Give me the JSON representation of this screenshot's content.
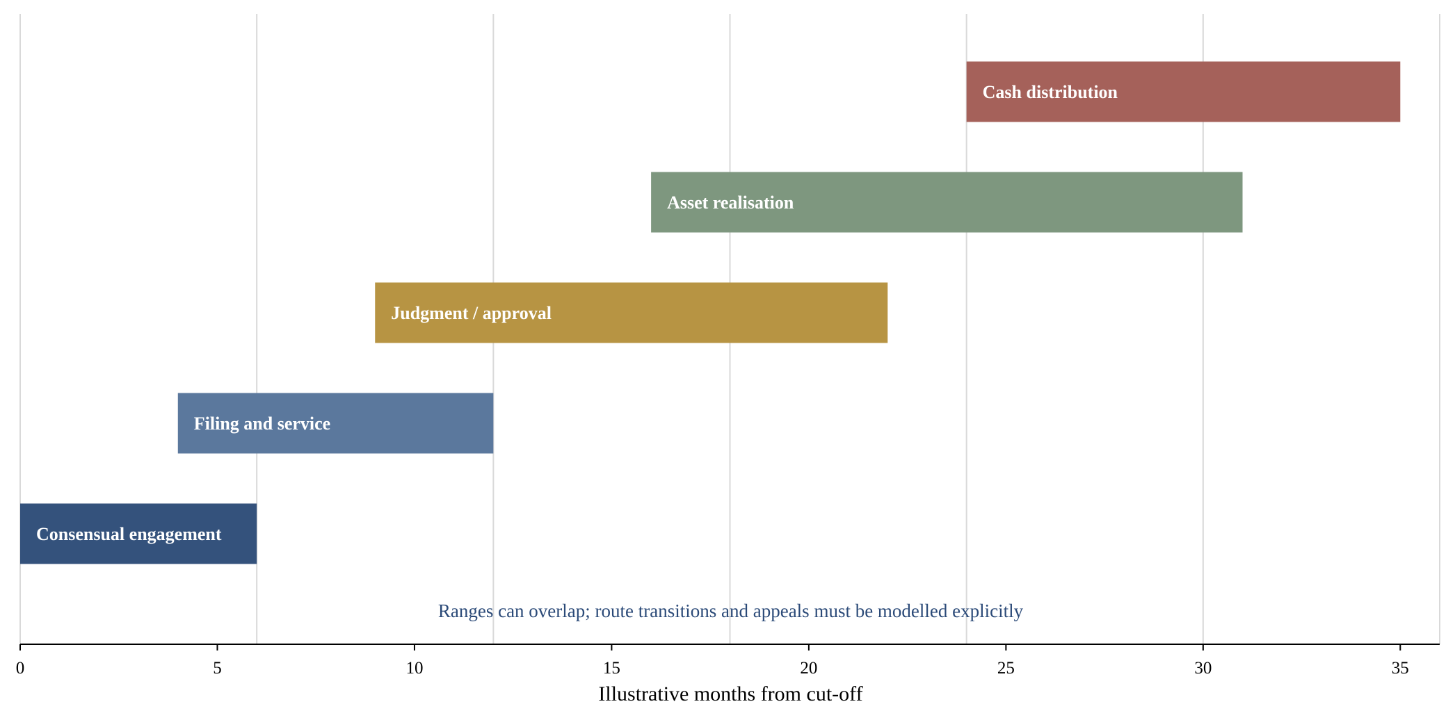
{
  "chart_data": {
    "type": "bar",
    "orientation": "horizontal",
    "title": "",
    "xlabel": "Illustrative months from cut-off",
    "ylabel": "",
    "xlim": [
      0,
      36
    ],
    "x_ticks": [
      0,
      5,
      10,
      15,
      20,
      25,
      30,
      35
    ],
    "gridlines": [
      0,
      6,
      12,
      18,
      24,
      30,
      36
    ],
    "grid": true,
    "legend": "none",
    "annotation": "Ranges can overlap; route transitions and appeals must be modelled explicitly",
    "annotation_color": "#2b4a78",
    "bars": [
      {
        "label": "Consensual engagement",
        "start": 0,
        "end": 6,
        "color": "#34527c"
      },
      {
        "label": "Filing and service",
        "start": 4,
        "end": 12,
        "color": "#5b789d"
      },
      {
        "label": "Judgment / approval",
        "start": 9,
        "end": 22,
        "color": "#b79443"
      },
      {
        "label": "Asset realisation",
        "start": 16,
        "end": 31,
        "color": "#7e977f"
      },
      {
        "label": "Cash distribution",
        "start": 24,
        "end": 35,
        "color": "#a5615a"
      }
    ]
  }
}
